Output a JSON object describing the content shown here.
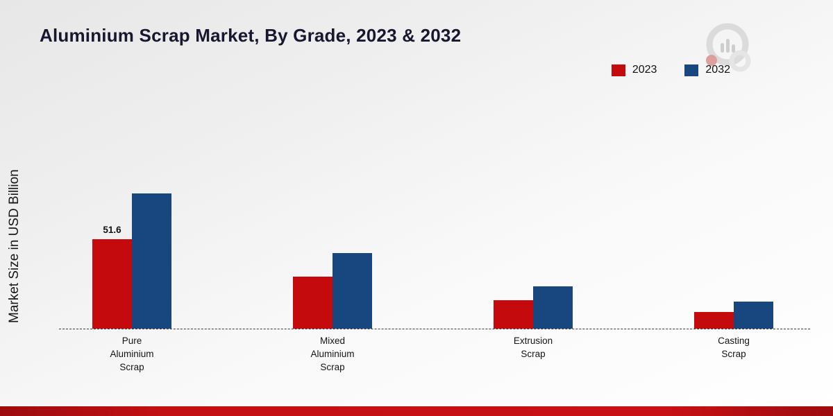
{
  "title": "Aluminium Scrap Market, By Grade, 2023 & 2032",
  "ylabel": "Market Size in USD Billion",
  "legend": [
    {
      "label": "2023",
      "color": "#c50a0e"
    },
    {
      "label": "2032",
      "color": "#17477e"
    }
  ],
  "colors": {
    "series_2023": "#c50a0e",
    "series_2032": "#17477e",
    "footer_band": "#b90f12",
    "title_text": "#17172f"
  },
  "chart_data": {
    "type": "bar",
    "title": "Aluminium Scrap Market, By Grade, 2023 & 2032",
    "xlabel": "",
    "ylabel": "Market Size in USD Billion",
    "ylim": [
      0,
      100
    ],
    "grid": false,
    "legend_position": "top-right",
    "categories": [
      [
        "Pure",
        "Aluminium",
        "Scrap"
      ],
      [
        "Mixed",
        "Aluminium",
        "Scrap"
      ],
      [
        "Extrusion",
        "Scrap"
      ],
      [
        "Casting",
        "Scrap"
      ]
    ],
    "series": [
      {
        "name": "2023",
        "color": "#c50a0e",
        "values": [
          51.6,
          30,
          16.5,
          9.5
        ]
      },
      {
        "name": "2032",
        "color": "#17477e",
        "values": [
          78,
          43.5,
          24.5,
          15.5
        ]
      }
    ],
    "annotations": [
      {
        "category_index": 0,
        "series_index": 0,
        "text": "51.6"
      }
    ]
  }
}
